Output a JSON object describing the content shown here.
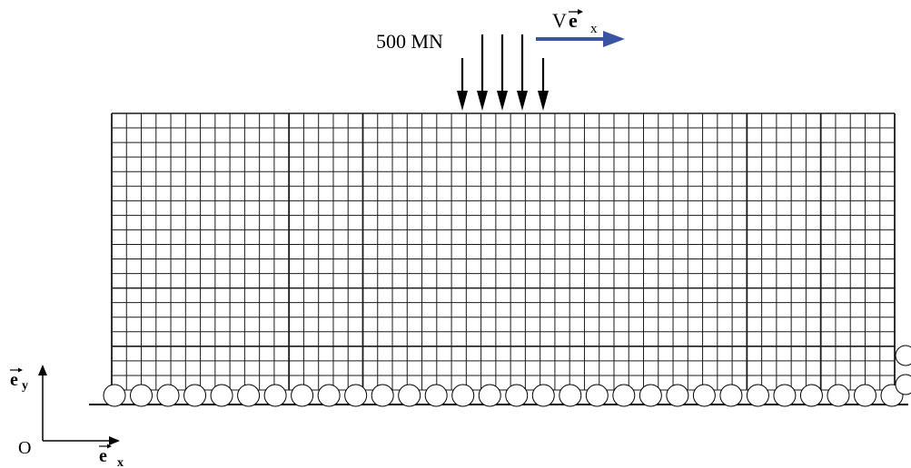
{
  "diagram": {
    "load_label": "500 MN",
    "velocity_label": "V",
    "velocity_vector": "e",
    "velocity_subscript": "x",
    "origin_label": "O",
    "axis_y_vector": "e",
    "axis_y_subscript": "y",
    "axis_x_vector": "e",
    "axis_x_subscript": "x",
    "load_arrow_count": 5,
    "mesh_columns": 53,
    "mesh_rows": 19,
    "bottom_support_count": 30,
    "side_support_count": 2,
    "colors": {
      "mesh_line": "#1a1a1a",
      "velocity_arrow": "#3a54a4",
      "load_arrow": "#000000",
      "support": "#000000"
    },
    "icons": {
      "load": "down-arrow-icon",
      "velocity": "right-arrow-icon",
      "support": "roller-support-icon"
    }
  }
}
